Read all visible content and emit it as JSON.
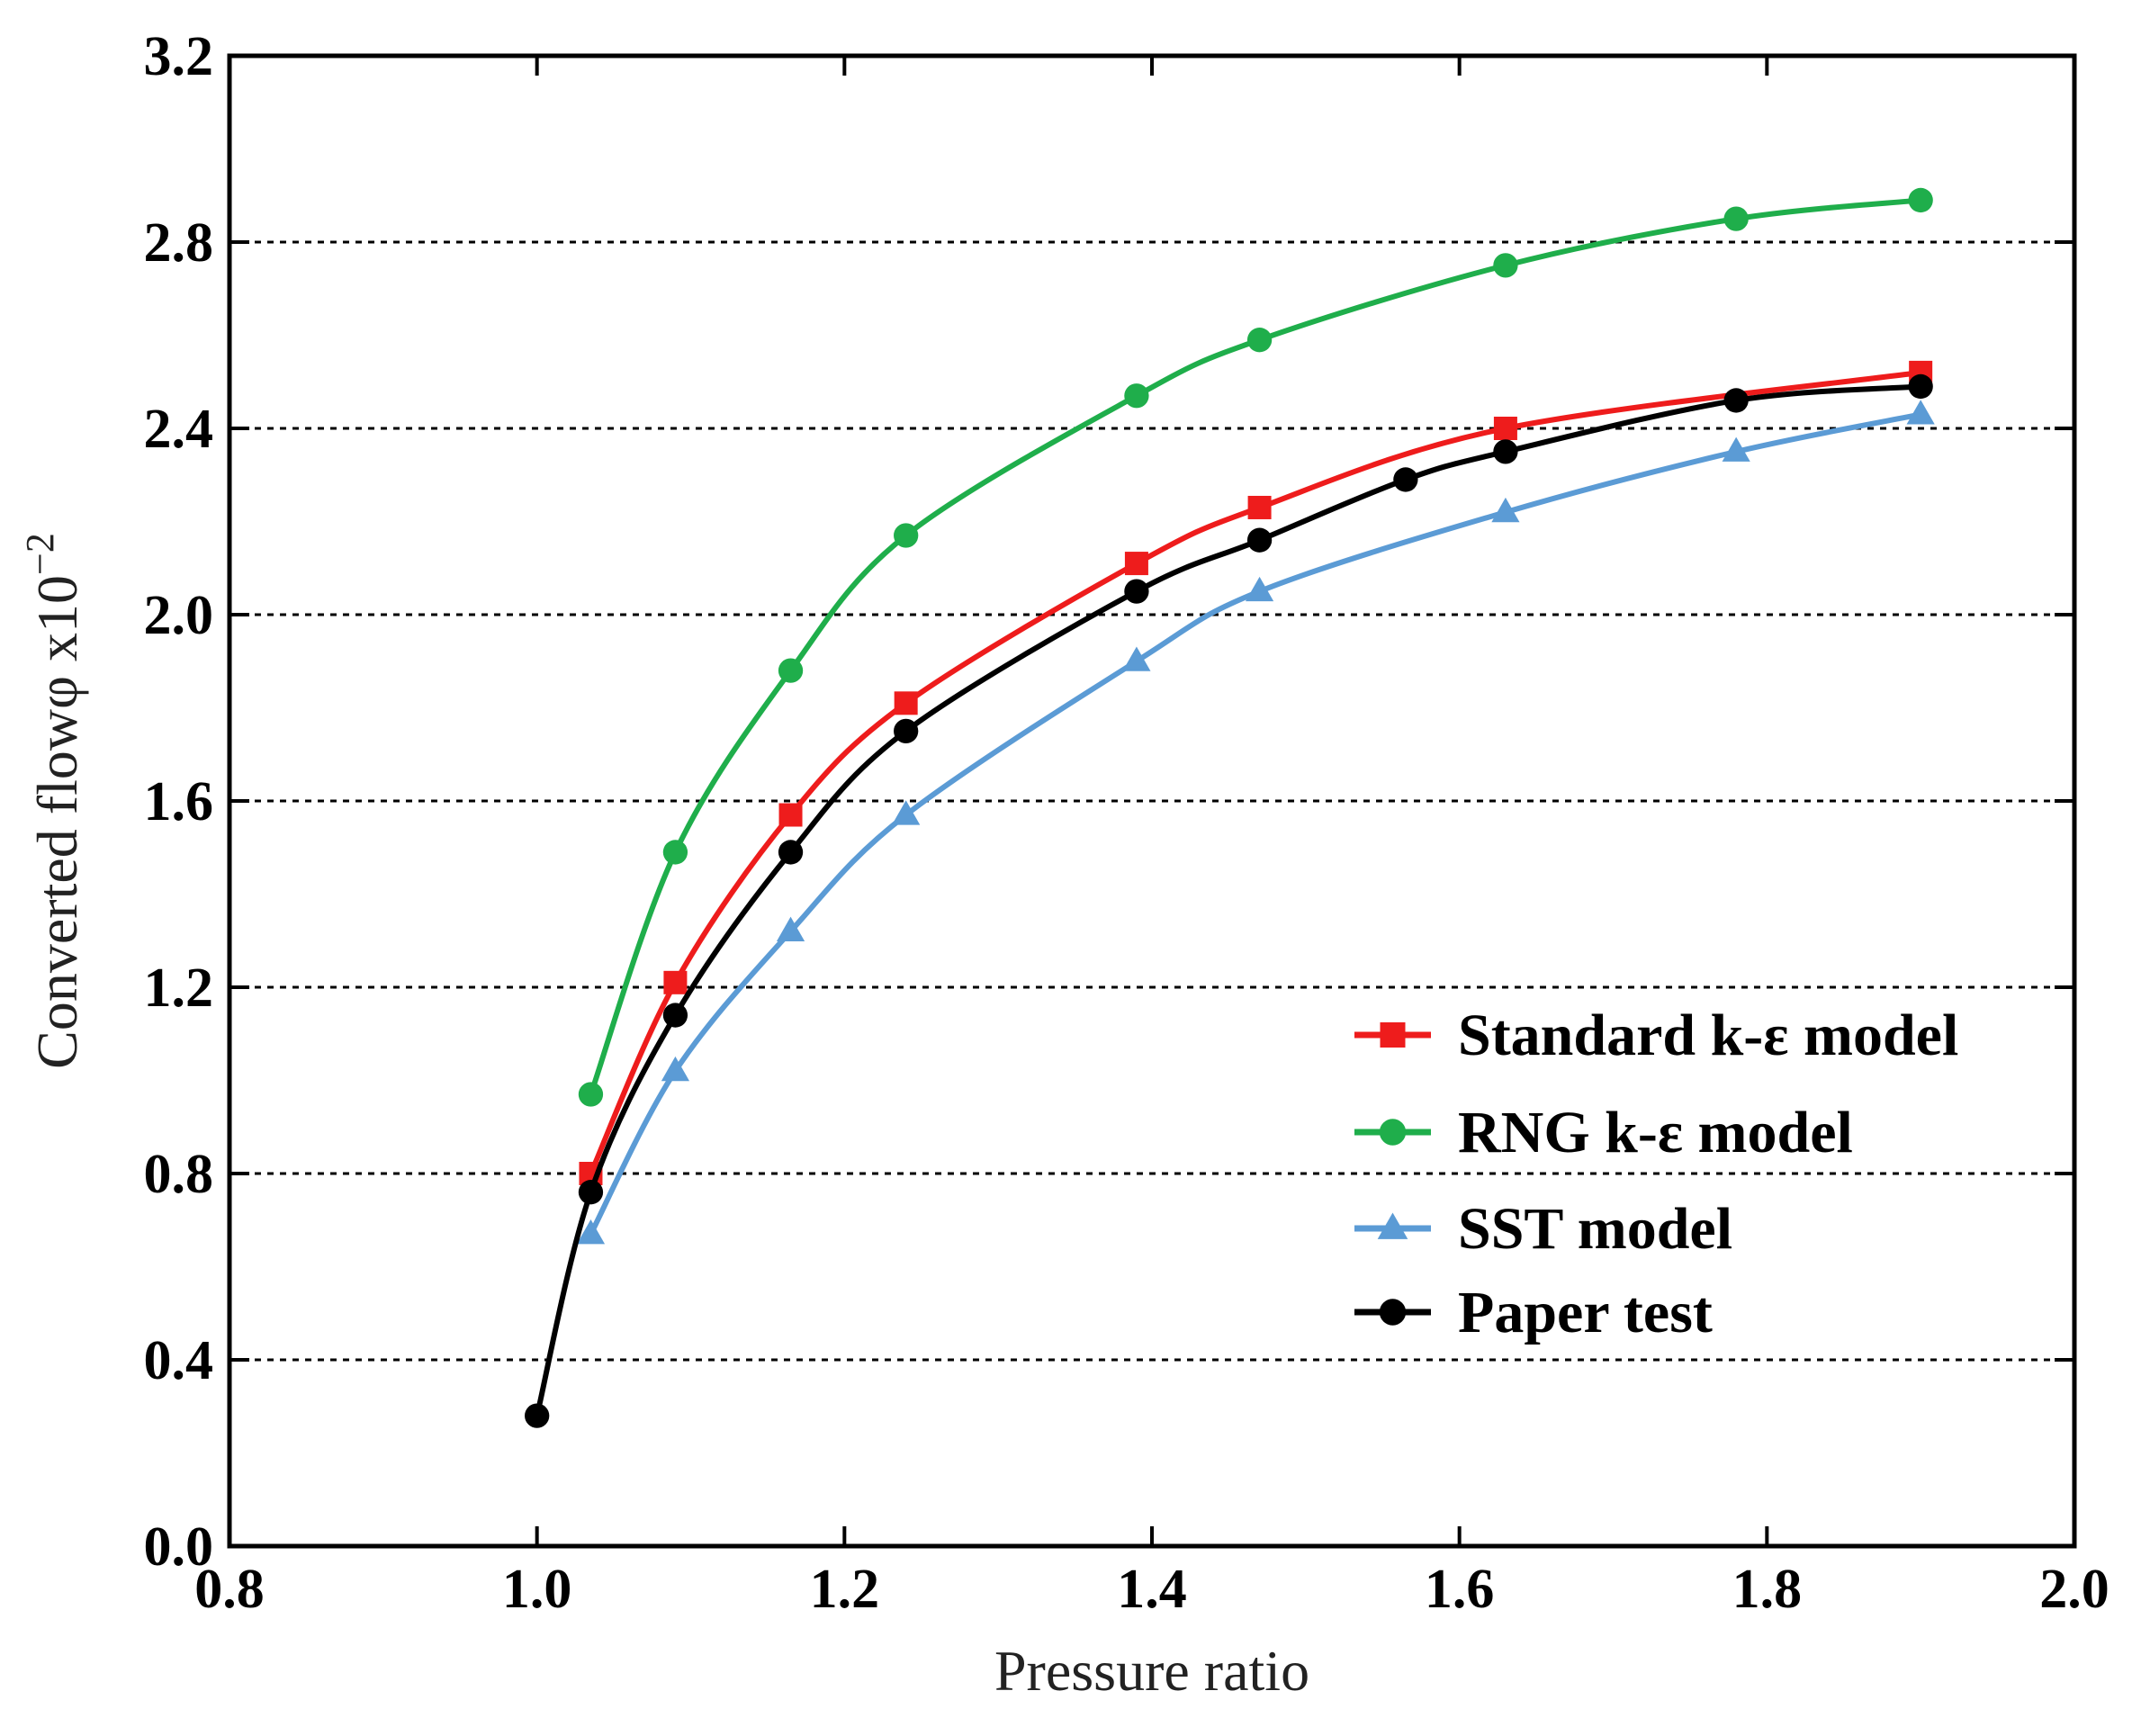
{
  "chart_data": {
    "type": "line",
    "xlabel": "Pressure ratio",
    "ylabel": "Converted flowφ x10",
    "ylabel_exponent": "−2",
    "xlim": [
      0.8,
      2.0
    ],
    "ylim": [
      0.0,
      3.2
    ],
    "xticks": [
      "0.8",
      "1.0",
      "1.2",
      "1.4",
      "1.6",
      "1.8",
      "2.0"
    ],
    "yticks": [
      "0.0",
      "0.4",
      "0.8",
      "1.2",
      "1.6",
      "2.0",
      "2.4",
      "2.8",
      "3.2"
    ],
    "grid": "horizontal-dotted",
    "legend_position": "bottom-right",
    "series": [
      {
        "name": "Standard k-ε model",
        "color": "#ee1c1c",
        "marker": "square",
        "x": [
          1.035,
          1.09,
          1.165,
          1.24,
          1.39,
          1.47,
          1.63,
          1.9
        ],
        "y": [
          0.8,
          1.21,
          1.57,
          1.81,
          2.11,
          2.23,
          2.4,
          2.52
        ]
      },
      {
        "name": "RNG k-ε model",
        "color": "#1fae4b",
        "marker": "circle",
        "x": [
          1.035,
          1.09,
          1.165,
          1.24,
          1.39,
          1.47,
          1.63,
          1.78,
          1.9
        ],
        "y": [
          0.97,
          1.49,
          1.88,
          2.17,
          2.47,
          2.59,
          2.75,
          2.85,
          2.89
        ]
      },
      {
        "name": "SST model",
        "color": "#5b9bd5",
        "marker": "triangle",
        "x": [
          1.035,
          1.09,
          1.165,
          1.24,
          1.39,
          1.47,
          1.63,
          1.78,
          1.9
        ],
        "y": [
          0.67,
          1.02,
          1.32,
          1.57,
          1.9,
          2.05,
          2.22,
          2.35,
          2.43
        ]
      },
      {
        "name": "Paper test",
        "color": "#000000",
        "marker": "circle",
        "x": [
          1.0,
          1.035,
          1.09,
          1.165,
          1.24,
          1.39,
          1.47,
          1.565,
          1.63,
          1.78,
          1.9
        ],
        "y": [
          0.28,
          0.76,
          1.14,
          1.49,
          1.75,
          2.05,
          2.16,
          2.29,
          2.35,
          2.46,
          2.49
        ]
      }
    ]
  }
}
